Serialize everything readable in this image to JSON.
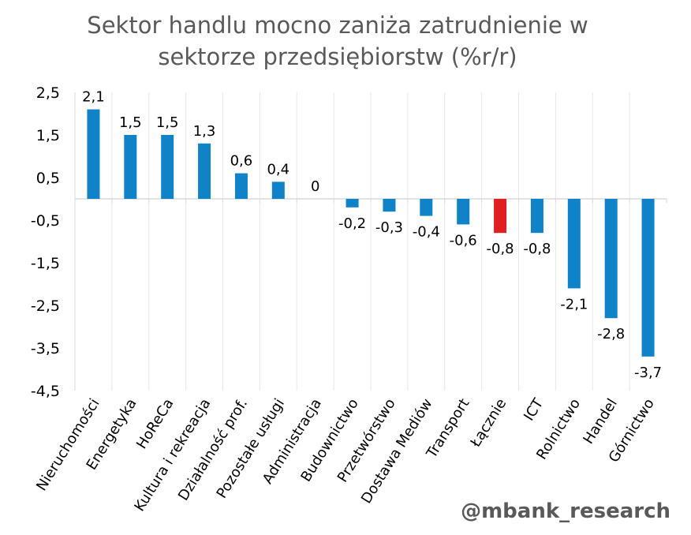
{
  "chart_data": {
    "type": "bar",
    "title_lines": [
      "Sektor handlu mocno zaniża zatrudnienie w",
      "sektorze przedsiębiorstw (%r/r)"
    ],
    "categories": [
      "Nieruchomości",
      "Energetyka",
      "HoReCa",
      "Kultura i rekreacja",
      "Działalność prof.",
      "Pozostałe usługi",
      "Administracja",
      "Budownictwo",
      "Przetwórstwo",
      "Dostawa Mediów",
      "Transport",
      "Łącznie",
      "ICT",
      "Rolnictwo",
      "Handel",
      "Górnictwo"
    ],
    "values": [
      2.1,
      1.5,
      1.5,
      1.3,
      0.6,
      0.4,
      0,
      -0.2,
      -0.3,
      -0.4,
      -0.6,
      -0.8,
      -0.8,
      -2.1,
      -2.8,
      -3.7
    ],
    "value_labels": [
      "2,1",
      "1,5",
      "1,5",
      "1,3",
      "0,6",
      "0,4",
      "0",
      "-0,2",
      "-0,3",
      "-0,4",
      "-0,6",
      "-0,8",
      "-0,8",
      "-2,1",
      "-2,8",
      "-3,7"
    ],
    "highlight_category": "Łącznie",
    "yticks": [
      2.5,
      1.5,
      0.5,
      -0.5,
      -1.5,
      -2.5,
      -3.5,
      -4.5
    ],
    "ytick_labels": [
      "2,5",
      "1,5",
      "0,5",
      "-0,5",
      "-1,5",
      "-2,5",
      "-3,5",
      "-4,5"
    ],
    "ylim": [
      -4.5,
      2.5
    ],
    "xlabel": "",
    "ylabel": "",
    "grid": "vertical",
    "colors": {
      "bar": "#0f82c8",
      "highlight": "#e02020",
      "axis": "#d9d9d9",
      "grid": "#e8e8e8",
      "text": "#000000",
      "title": "#595959"
    }
  },
  "watermark": "@mbank_research"
}
